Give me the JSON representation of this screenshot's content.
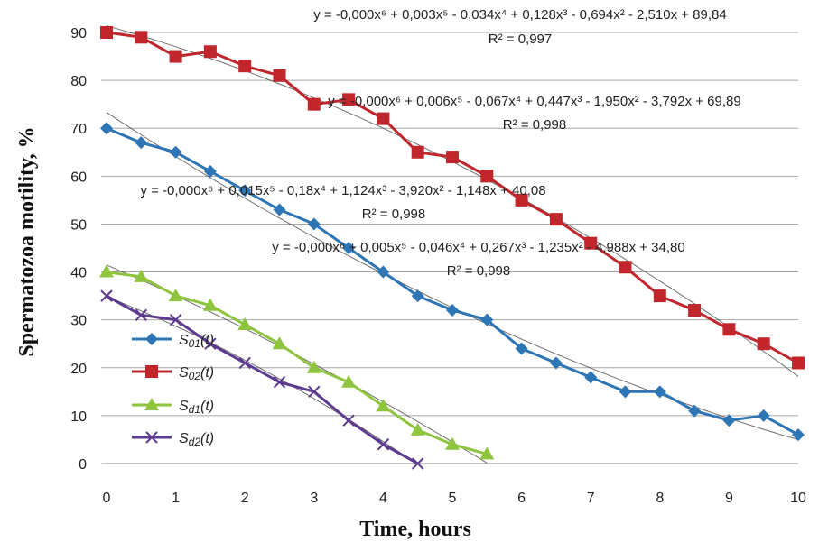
{
  "chart_data": {
    "type": "line",
    "xlabel": "Time, hours",
    "ylabel": "Spermatozoa motility, %",
    "xlim": [
      0,
      10
    ],
    "ylim": [
      0,
      90
    ],
    "x_ticks": [
      "0",
      "1",
      "2",
      "3",
      "4",
      "5",
      "6",
      "7",
      "8",
      "9",
      "10"
    ],
    "y_ticks": [
      "0",
      "10",
      "20",
      "30",
      "40",
      "50",
      "60",
      "70",
      "80",
      "90"
    ],
    "grid": "horizontal",
    "legend_position": "left",
    "series": [
      {
        "name": "S01(t)",
        "label_main": "S",
        "label_sub": "01",
        "label_arg": "(t)",
        "color": "#2e75b6",
        "marker": "diamond",
        "x": [
          0,
          0.5,
          1,
          1.5,
          2,
          2.5,
          3,
          3.5,
          4,
          4.5,
          5,
          5.5,
          6,
          6.5,
          7,
          7.5,
          8,
          8.5,
          9,
          9.5,
          10
        ],
        "y": [
          70,
          67,
          65,
          61,
          57,
          53,
          50,
          45,
          40,
          35,
          32,
          30,
          24,
          21,
          18,
          15,
          15,
          11,
          9,
          10,
          6
        ]
      },
      {
        "name": "S02(t)",
        "label_main": "S",
        "label_sub": "02",
        "label_arg": "(t)",
        "color": "#c0262c",
        "marker": "square",
        "x": [
          0,
          0.5,
          1,
          1.5,
          2,
          2.5,
          3,
          3.5,
          4,
          4.5,
          5,
          5.5,
          6,
          6.5,
          7,
          7.5,
          8,
          8.5,
          9,
          9.5,
          10
        ],
        "y": [
          90,
          89,
          85,
          86,
          83,
          81,
          75,
          76,
          72,
          65,
          64,
          60,
          55,
          51,
          46,
          41,
          35,
          32,
          28,
          25,
          21
        ]
      },
      {
        "name": "Sd1(t)",
        "label_main": "S",
        "label_sub": "d1",
        "label_arg": "(t)",
        "color": "#8fc43f",
        "marker": "triangle",
        "x": [
          0,
          0.5,
          1,
          1.5,
          2,
          2.5,
          3,
          3.5,
          4,
          4.5,
          5,
          5.5
        ],
        "y": [
          40,
          39,
          35,
          33,
          29,
          25,
          20,
          17,
          12,
          7,
          4,
          2
        ]
      },
      {
        "name": "Sd2(t)",
        "label_main": "S",
        "label_sub": "d2",
        "label_arg": "(t)",
        "color": "#5d3b8e",
        "marker": "x",
        "x": [
          0,
          0.5,
          1,
          1.5,
          2,
          2.5,
          3,
          3.5,
          4,
          4.5
        ],
        "y": [
          35,
          31,
          30,
          25,
          21,
          17,
          15,
          9,
          4,
          0
        ]
      }
    ],
    "annotations": [
      {
        "equation": "y = -0,000x⁶ + 0,003x⁵ - 0,034x⁴ + 0,128x³ - 0,694x² - 2,510x + 89,84",
        "r2": "R² = 0,997"
      },
      {
        "equation": "y = -0,000x⁶ + 0,006x⁵ - 0,067x⁴ + 0,447x³ - 1,950x² - 3,792x + 69,89",
        "r2": "R² = 0,998"
      },
      {
        "equation": "y = -0,000x⁶ + 0,015x⁵ - 0,18x⁴ + 1,124x³ - 3,920x² - 1,148x + 40,08",
        "r2": "R² = 0,998"
      },
      {
        "equation": "y = -0,000x⁶ + 0,005x⁵ - 0,046x⁴ + 0,267x³ - 1,235x² - 4,988x + 34,80",
        "r2": "R² = 0,998"
      }
    ]
  }
}
